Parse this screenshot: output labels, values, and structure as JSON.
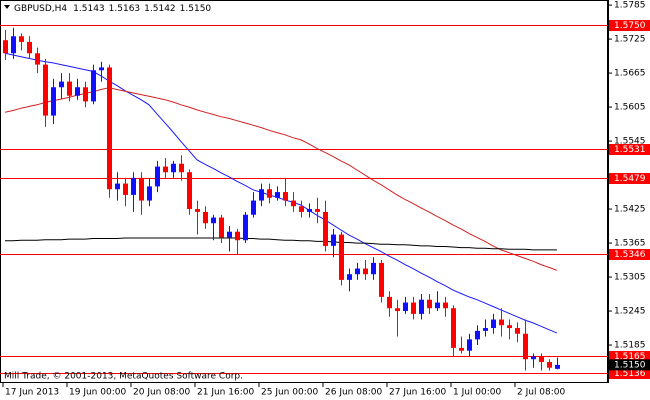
{
  "chart_data": {
    "type": "candlestick",
    "title": "GBPUSD,H4",
    "quote": [
      "1.5143",
      "1.5163",
      "1.5142",
      "1.5150"
    ],
    "footer": "Mill Trade, © 2001-2013, MetaQuotes Software Corp.",
    "categories": [
      "17 Jun 2013",
      null,
      null,
      null,
      null,
      null,
      null,
      null,
      "19 Jun 00:00",
      null,
      null,
      null,
      null,
      null,
      null,
      null,
      "20 Jun 08:00",
      null,
      null,
      null,
      null,
      null,
      null,
      null,
      "21 Jun 16:00",
      null,
      null,
      null,
      null,
      null,
      null,
      null,
      "25 Jun 00:00",
      null,
      null,
      null,
      null,
      null,
      null,
      null,
      "26 Jun 08:00",
      null,
      null,
      null,
      null,
      null,
      null,
      null,
      "27 Jun 16:00",
      null,
      null,
      null,
      null,
      null,
      null,
      null,
      "1 Jul 00:00",
      null,
      null,
      null,
      null,
      null,
      null,
      null,
      "2 Jul 08:00",
      null,
      null,
      null,
      null,
      null
    ],
    "open": [
      1.5723,
      1.57,
      1.573,
      1.572,
      1.57,
      1.568,
      1.559,
      1.564,
      1.565,
      1.5625,
      1.564,
      1.5615,
      1.567,
      1.5675,
      1.546,
      1.547,
      1.545,
      1.548,
      1.544,
      1.5465,
      1.55,
      1.549,
      1.5505,
      1.549,
      1.5425,
      1.542,
      1.54,
      1.541,
      1.5375,
      1.5385,
      1.537,
      1.5415,
      1.544,
      1.546,
      1.5445,
      1.5455,
      1.544,
      1.543,
      1.542,
      1.5425,
      1.542,
      1.536,
      1.538,
      1.53,
      1.531,
      1.532,
      1.531,
      1.533,
      1.527,
      1.525,
      1.5245,
      1.526,
      1.524,
      1.5265,
      1.525,
      1.526,
      1.525,
      1.518,
      1.5175,
      1.5195,
      1.521,
      1.5215,
      1.523,
      1.522,
      1.5215,
      1.5205,
      1.516,
      1.5165,
      1.5155,
      1.5143
    ],
    "high": [
      1.5741,
      1.5745,
      1.5735,
      1.573,
      1.571,
      1.569,
      1.5655,
      1.5665,
      1.5665,
      1.5655,
      1.565,
      1.568,
      1.5685,
      1.568,
      1.549,
      1.548,
      1.549,
      1.549,
      1.548,
      1.551,
      1.5515,
      1.551,
      1.552,
      1.5495,
      1.544,
      1.543,
      1.5415,
      1.5415,
      1.5395,
      1.539,
      1.542,
      1.5455,
      1.547,
      1.547,
      1.5465,
      1.548,
      1.5455,
      1.544,
      1.5435,
      1.5445,
      1.544,
      1.539,
      1.5385,
      1.532,
      1.533,
      1.5335,
      1.534,
      1.5335,
      1.528,
      1.5265,
      1.527,
      1.527,
      1.5275,
      1.5275,
      1.528,
      1.527,
      1.5255,
      1.52,
      1.5205,
      1.522,
      1.523,
      1.524,
      1.525,
      1.523,
      1.5225,
      1.523,
      1.517,
      1.517,
      1.516,
      1.5163
    ],
    "low": [
      1.5688,
      1.569,
      1.5705,
      1.569,
      1.5665,
      1.557,
      1.5575,
      1.562,
      1.5615,
      1.5618,
      1.5605,
      1.561,
      1.565,
      1.5445,
      1.544,
      1.543,
      1.542,
      1.5415,
      1.543,
      1.5455,
      1.548,
      1.548,
      1.5475,
      1.5415,
      1.538,
      1.539,
      1.537,
      1.5365,
      1.535,
      1.5345,
      1.5365,
      1.541,
      1.543,
      1.5435,
      1.544,
      1.543,
      1.542,
      1.541,
      1.541,
      1.54,
      1.535,
      1.534,
      1.529,
      1.528,
      1.53,
      1.53,
      1.53,
      1.526,
      1.5235,
      1.52,
      1.524,
      1.523,
      1.523,
      1.524,
      1.5245,
      1.5235,
      1.5165,
      1.517,
      1.5165,
      1.5185,
      1.52,
      1.5205,
      1.52,
      1.5195,
      1.519,
      1.514,
      1.5145,
      1.514,
      1.514,
      1.5142
    ],
    "close": [
      1.57,
      1.573,
      1.572,
      1.57,
      1.568,
      1.559,
      1.564,
      1.565,
      1.5625,
      1.564,
      1.5615,
      1.567,
      1.5675,
      1.546,
      1.547,
      1.545,
      1.548,
      1.544,
      1.5465,
      1.55,
      1.549,
      1.5505,
      1.549,
      1.5425,
      1.542,
      1.54,
      1.541,
      1.5375,
      1.5385,
      1.537,
      1.5415,
      1.544,
      1.546,
      1.5445,
      1.5455,
      1.544,
      1.543,
      1.542,
      1.5425,
      1.542,
      1.536,
      1.538,
      1.53,
      1.531,
      1.532,
      1.531,
      1.533,
      1.527,
      1.525,
      1.5245,
      1.526,
      1.524,
      1.5265,
      1.525,
      1.526,
      1.525,
      1.518,
      1.5175,
      1.5195,
      1.521,
      1.5215,
      1.523,
      1.522,
      1.5215,
      1.5205,
      1.516,
      1.5165,
      1.5155,
      1.5145,
      1.515
    ],
    "up_color": "#1010ff",
    "down_color": "#ff0000",
    "lines": [
      {
        "color": "#1a1aff",
        "values": [
          1.57,
          1.5697,
          1.5694,
          1.5691,
          1.5688,
          1.5685,
          1.5683,
          1.568,
          1.5677,
          1.5674,
          1.5671,
          1.5668,
          1.566,
          1.5651,
          1.5643,
          1.5634,
          1.5626,
          1.5618,
          1.5609,
          1.5593,
          1.5577,
          1.5561,
          1.5544,
          1.5528,
          1.5512,
          1.5504,
          1.5497,
          1.5489,
          1.5482,
          1.5474,
          1.5467,
          1.5459,
          1.5455,
          1.545,
          1.5446,
          1.5441,
          1.5437,
          1.5432,
          1.5423,
          1.5414,
          1.5406,
          1.5397,
          1.5388,
          1.5379,
          1.5372,
          1.5364,
          1.5357,
          1.535,
          1.5342,
          1.5335,
          1.5327,
          1.532,
          1.5312,
          1.5305,
          1.5297,
          1.529,
          1.5282,
          1.5276,
          1.527,
          1.5265,
          1.5259,
          1.5253,
          1.5247,
          1.5241,
          1.5235,
          1.5229,
          1.5224,
          1.5218,
          1.5212,
          1.5206
        ]
      },
      {
        "color": "#d22020",
        "values": [
          1.5596,
          1.5599,
          1.5603,
          1.5606,
          1.5609,
          1.5613,
          1.5616,
          1.5619,
          1.5622,
          1.5626,
          1.5629,
          1.5632,
          1.5636,
          1.5639,
          1.5636,
          1.5633,
          1.563,
          1.5627,
          1.5624,
          1.5621,
          1.5618,
          1.5614,
          1.5609,
          1.5605,
          1.56,
          1.5596,
          1.5592,
          1.5588,
          1.5585,
          1.5581,
          1.5577,
          1.5573,
          1.5569,
          1.5564,
          1.556,
          1.5556,
          1.5551,
          1.5547,
          1.554,
          1.5532,
          1.5525,
          1.5518,
          1.551,
          1.5503,
          1.5494,
          1.5485,
          1.5476,
          1.5468,
          1.5459,
          1.545,
          1.5442,
          1.5435,
          1.5427,
          1.542,
          1.5412,
          1.5405,
          1.5397,
          1.539,
          1.5382,
          1.5375,
          1.5368,
          1.536,
          1.5353,
          1.5348,
          1.5343,
          1.5338,
          1.5333,
          1.5327,
          1.5322,
          1.5317
        ]
      },
      {
        "color": "#000000",
        "values": [
          1.5369,
          1.5369,
          1.537,
          1.537,
          1.537,
          1.5371,
          1.5371,
          1.5371,
          1.5372,
          1.5372,
          1.5372,
          1.5373,
          1.5373,
          1.5373,
          1.5373,
          1.5374,
          1.5374,
          1.5374,
          1.5374,
          1.5374,
          1.5374,
          1.5374,
          1.5374,
          1.5374,
          1.5374,
          1.5374,
          1.5374,
          1.5374,
          1.5374,
          1.5374,
          1.5373,
          1.5373,
          1.5372,
          1.5372,
          1.5371,
          1.537,
          1.537,
          1.5369,
          1.5369,
          1.5368,
          1.5368,
          1.5367,
          1.5366,
          1.5366,
          1.5365,
          1.5365,
          1.5364,
          1.5363,
          1.5363,
          1.5362,
          1.5362,
          1.5361,
          1.536,
          1.536,
          1.5359,
          1.5359,
          1.5358,
          1.5357,
          1.5357,
          1.5356,
          1.5356,
          1.5355,
          1.5355,
          1.5354,
          1.5354,
          1.5354,
          1.5353,
          1.5353,
          1.5353,
          1.5353
        ]
      }
    ],
    "levels": [
      {
        "value": 1.575,
        "label": "1.5750"
      },
      1.5531,
      1.5479,
      1.5346,
      1.5165,
      1.5136
    ],
    "level_color": "#ff0000",
    "last_price": {
      "value": 1.515,
      "label": "1.5150"
    },
    "ylim": [
      1.5118,
      1.5794
    ],
    "yticks": [
      1.5785,
      1.5725,
      1.5665,
      1.5605,
      1.5545,
      1.5425,
      1.5365,
      1.5305,
      1.5245,
      1.5185
    ]
  }
}
